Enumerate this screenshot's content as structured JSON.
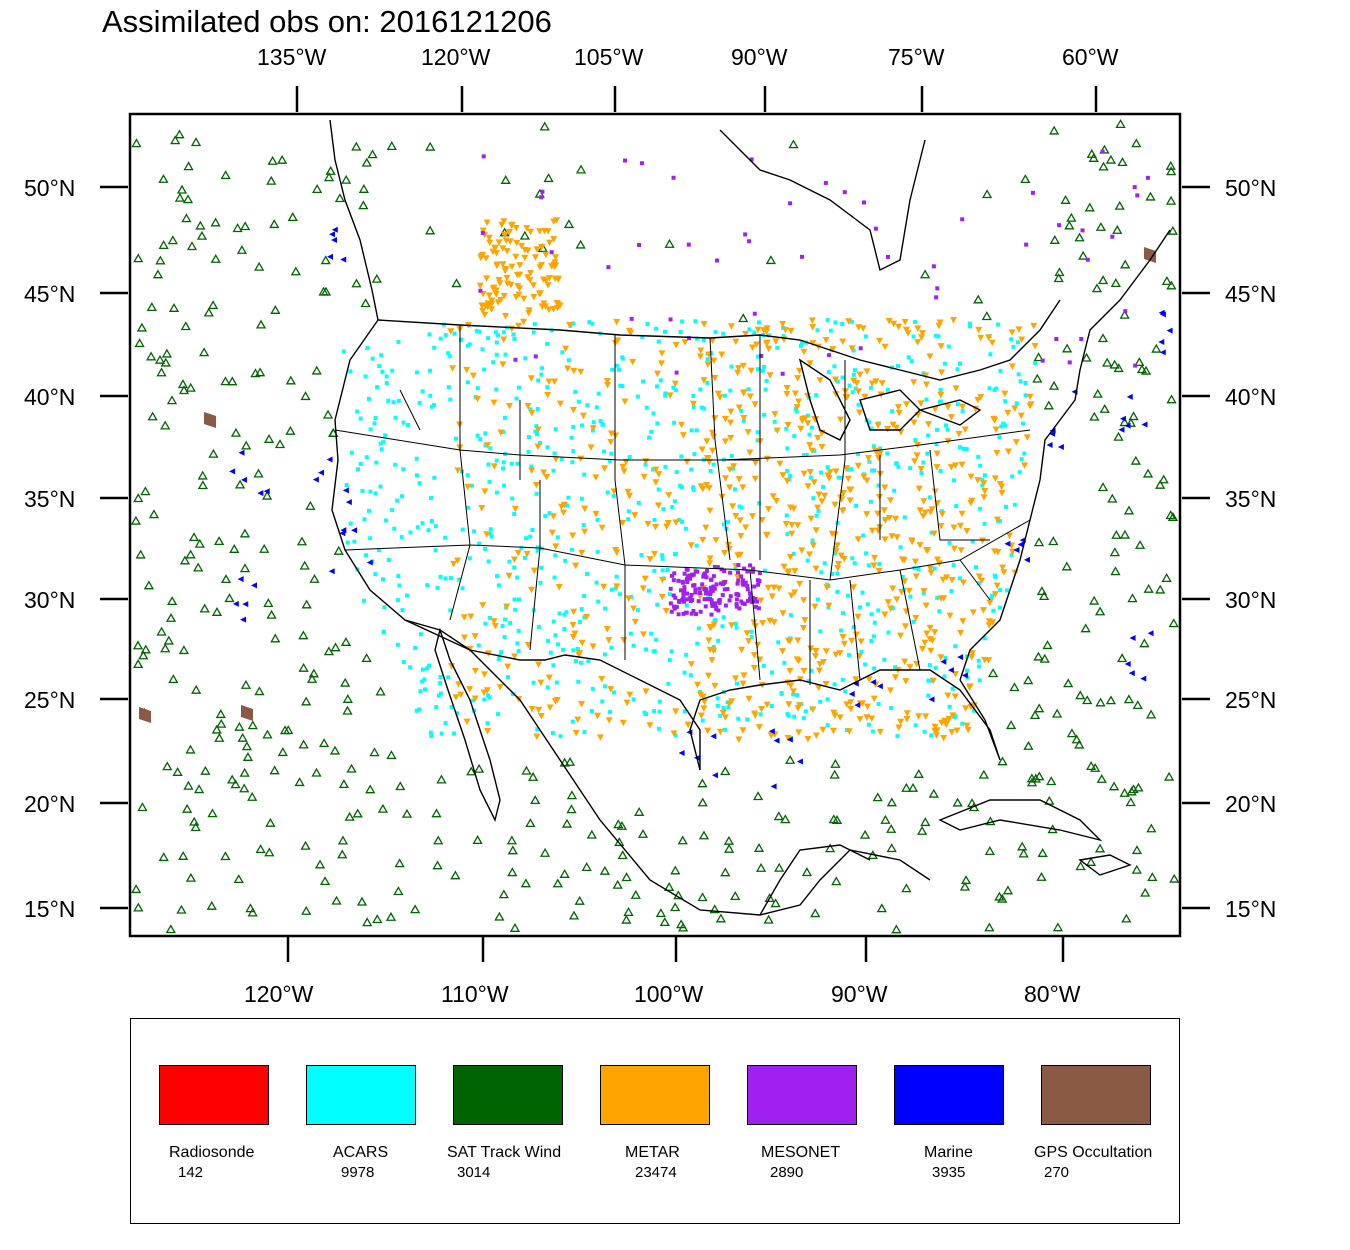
{
  "title": "Assimilated obs on: 2016121206",
  "top_axis": {
    "ticks": [
      "135°W",
      "120°W",
      "105°W",
      "90°W",
      "75°W",
      "60°W"
    ]
  },
  "bottom_axis": {
    "ticks": [
      "120°W",
      "110°W",
      "100°W",
      "90°W",
      "80°W"
    ]
  },
  "left_axis": {
    "ticks": [
      "50°N",
      "45°N",
      "40°N",
      "35°N",
      "30°N",
      "25°N",
      "20°N",
      "15°N"
    ]
  },
  "right_axis": {
    "ticks": [
      "50°N",
      "45°N",
      "40°N",
      "35°N",
      "30°N",
      "25°N",
      "20°N",
      "15°N"
    ]
  },
  "map": {
    "region": "Contiguous United States and surrounding ocean",
    "lat_range": [
      13.5,
      53.5
    ],
    "lon_range": [
      -128,
      -74
    ]
  },
  "legend": {
    "items": [
      {
        "name": "Radiosonde",
        "count": "142",
        "color": "#ff0000"
      },
      {
        "name": "ACARS",
        "count": "9978",
        "color": "#00ffff"
      },
      {
        "name": "SAT Track Wind",
        "count": "3014",
        "color": "#006400"
      },
      {
        "name": "METAR",
        "count": "23474",
        "color": "#ffa500"
      },
      {
        "name": "MESONET",
        "count": "2890",
        "color": "#a020f0"
      },
      {
        "name": "Marine",
        "count": "3935",
        "color": "#0000ff"
      },
      {
        "name": "GPS Occultation",
        "count": "270",
        "color": "#8b5a44"
      }
    ]
  },
  "colors": {
    "coastline": "#000000",
    "frame": "#000000"
  }
}
